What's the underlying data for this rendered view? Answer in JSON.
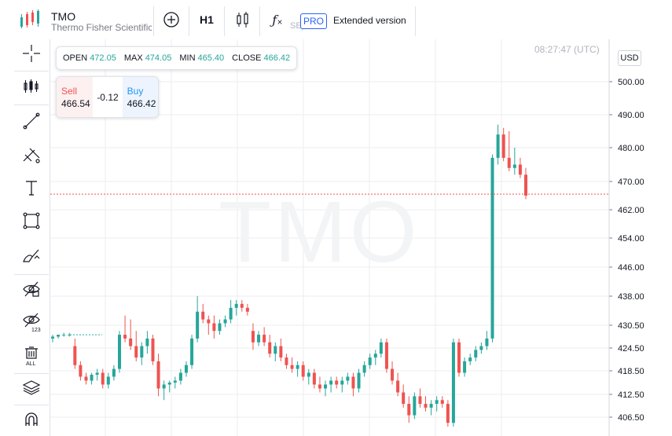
{
  "header": {
    "symbol": "TMO",
    "name": "Thermo Fisher Scientific",
    "interval": "H1",
    "exchange_partial": "SE)",
    "pro_badge": "PRO",
    "extended_label": "Extended version"
  },
  "ohlc": {
    "open_label": "OPEN",
    "open": "472.05",
    "max_label": "MAX",
    "max": "474.05",
    "min_label": "MIN",
    "min": "465.40",
    "close_label": "CLOSE",
    "close": "466.42"
  },
  "trade": {
    "sell_label": "Sell",
    "sell_price": "466.54",
    "spread": "-0.12",
    "buy_label": "Buy",
    "buy_price": "466.42"
  },
  "clock": "08:27:47 (UTC)",
  "currency": "USD",
  "watermark": "TMO",
  "colors": {
    "up": "#26a69a",
    "down": "#ef5350",
    "price_line": "#ef5350",
    "grid": "#eceef2",
    "accent": "#2962ff"
  },
  "toolbar_icons": [
    "plus-circle-icon",
    "interval-H1",
    "candles-icon",
    "function-icon"
  ],
  "left_tools": [
    "crosshair-icon",
    "indicators-icon",
    "trend-line-icon",
    "fib-icon",
    "text-icon",
    "rectangle-icon",
    "brush-icon",
    "hide-drawings-icon",
    "hide-indicators-icon",
    "remove-all-icon",
    "layers-icon",
    "magnet-icon"
  ],
  "chart_data": {
    "type": "candlestick",
    "y_ticks": [
      "500.00",
      "490.00",
      "480.00",
      "470.00",
      "462.00",
      "454.00",
      "446.00",
      "438.00",
      "430.50",
      "424.50",
      "418.50",
      "412.50",
      "406.50"
    ],
    "current_price": 466.42,
    "candles": [
      [
        427,
        428,
        426,
        427.5
      ],
      [
        427.5,
        428,
        427,
        428
      ],
      [
        428,
        428.5,
        427.5,
        428
      ],
      [
        428,
        428.5,
        427.5,
        428
      ],
      [
        425,
        427,
        419,
        420
      ],
      [
        420,
        421,
        416,
        417
      ],
      [
        417,
        418,
        415,
        416
      ],
      [
        416,
        418,
        415,
        417.5
      ],
      [
        417.5,
        419,
        416,
        418
      ],
      [
        418,
        419,
        414,
        415
      ],
      [
        415,
        418,
        414,
        417
      ],
      [
        417,
        420,
        416,
        419
      ],
      [
        419,
        429,
        418,
        428
      ],
      [
        428,
        433,
        426,
        427
      ],
      [
        427,
        432,
        424,
        425
      ],
      [
        425,
        429,
        421,
        422
      ],
      [
        422,
        426,
        420,
        425
      ],
      [
        425,
        429,
        423,
        427
      ],
      [
        427,
        428,
        420,
        421
      ],
      [
        421,
        423,
        412,
        414
      ],
      [
        414,
        416,
        411,
        415
      ],
      [
        415,
        416,
        413,
        415.5
      ],
      [
        415.5,
        417,
        414,
        416
      ],
      [
        416,
        419,
        415,
        418
      ],
      [
        418,
        421,
        417,
        420
      ],
      [
        420,
        428,
        419,
        427
      ],
      [
        427,
        438,
        426,
        434
      ],
      [
        434,
        436,
        431,
        432
      ],
      [
        432,
        433,
        428,
        431
      ],
      [
        431,
        433,
        427,
        429
      ],
      [
        429,
        432,
        428,
        431
      ],
      [
        431,
        433,
        430,
        432
      ],
      [
        432,
        437,
        431,
        435
      ],
      [
        435,
        437,
        433,
        436
      ],
      [
        436,
        437,
        434,
        435
      ],
      [
        435,
        436,
        433,
        434
      ],
      [
        429,
        431,
        424,
        426
      ],
      [
        426,
        429,
        425,
        428
      ],
      [
        428,
        430,
        425,
        426
      ],
      [
        426,
        428,
        422,
        423
      ],
      [
        423,
        426,
        421,
        425
      ],
      [
        425,
        427,
        421,
        422
      ],
      [
        422,
        423,
        419,
        420
      ],
      [
        420,
        422,
        418,
        419
      ],
      [
        419,
        421,
        417,
        420
      ],
      [
        420,
        421,
        416,
        417
      ],
      [
        417,
        419,
        415,
        418
      ],
      [
        418,
        419,
        414,
        415
      ],
      [
        415,
        417,
        413,
        414
      ],
      [
        414,
        416,
        412,
        415
      ],
      [
        415,
        417,
        413,
        416
      ],
      [
        416,
        417,
        414,
        415
      ],
      [
        415,
        417,
        413,
        416
      ],
      [
        416,
        418,
        415,
        417
      ],
      [
        417,
        418,
        412,
        414
      ],
      [
        414,
        419,
        413,
        418
      ],
      [
        418,
        421,
        417,
        420
      ],
      [
        420,
        423,
        419,
        422
      ],
      [
        422,
        424,
        420,
        423
      ],
      [
        423,
        427,
        422,
        426
      ],
      [
        426,
        427,
        418,
        419
      ],
      [
        419,
        421,
        415,
        416
      ],
      [
        416,
        418,
        412,
        413
      ],
      [
        413,
        415,
        409,
        410
      ],
      [
        410,
        412,
        405,
        407
      ],
      [
        407,
        413,
        406,
        412
      ],
      [
        412,
        414,
        409,
        410
      ],
      [
        410,
        412,
        408,
        409
      ],
      [
        409,
        411,
        407,
        410
      ],
      [
        410,
        412,
        408,
        411
      ],
      [
        411,
        412,
        409,
        410
      ],
      [
        410,
        411,
        404,
        405
      ],
      [
        405,
        427,
        404,
        426
      ],
      [
        426,
        427,
        417,
        418
      ],
      [
        418,
        422,
        417,
        421
      ],
      [
        421,
        423,
        420,
        422
      ],
      [
        422,
        425,
        421,
        424
      ],
      [
        424,
        426,
        423,
        425
      ],
      [
        425,
        429,
        424,
        427
      ],
      [
        427,
        478,
        426,
        477
      ],
      [
        477,
        487,
        475,
        484
      ],
      [
        484,
        486,
        476,
        477
      ],
      [
        477,
        485,
        473,
        474
      ],
      [
        474,
        480,
        472,
        475
      ],
      [
        475,
        477,
        471,
        472
      ],
      [
        472,
        474,
        465,
        466
      ]
    ]
  }
}
